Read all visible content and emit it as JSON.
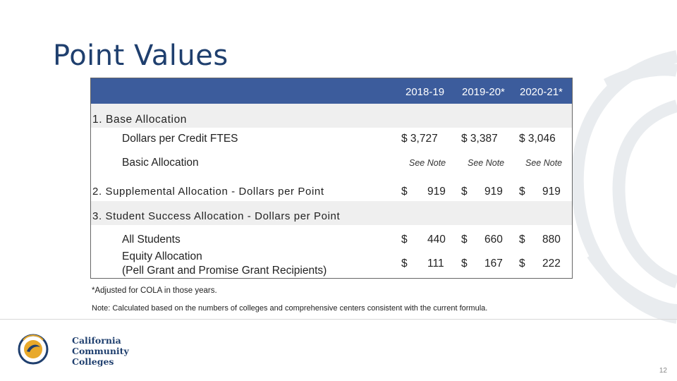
{
  "title": "Point Values",
  "columns": [
    "2018-19",
    "2019-20*",
    "2020-21*"
  ],
  "section1": {
    "label": "1. Base Allocation",
    "row1": {
      "label": "Dollars per Credit FTES",
      "vals": [
        "$  3,727",
        "$  3,387",
        "$  3,046"
      ]
    },
    "row2": {
      "label": "Basic Allocation",
      "notes": [
        "See Note",
        "See Note",
        "See Note"
      ]
    }
  },
  "section2": {
    "label": "2. Supplemental Allocation - Dollars per Point",
    "dollar": "$",
    "vals": [
      "919",
      "919",
      "919"
    ]
  },
  "section3": {
    "label": "3. Student Success Allocation - Dollars per Point",
    "row1": {
      "label": "All Students",
      "vals": [
        "440",
        "660",
        "880"
      ]
    },
    "row2": {
      "label1": "Equity Allocation",
      "label2": "(Pell Grant and Promise Grant Recipients)",
      "vals": [
        "111",
        "167",
        "222"
      ]
    }
  },
  "footnote1": "*Adjusted for COLA in those years.",
  "footnote2": "Note: Calculated based on the numbers of colleges and comprehensive centers consistent with the current formula.",
  "logo": {
    "line1": "California",
    "line2": "Community",
    "line3": "Colleges"
  },
  "page_number": "12",
  "colors": {
    "header": "#3c5c9c",
    "title": "#1f3f6e",
    "band": "#efefef"
  }
}
